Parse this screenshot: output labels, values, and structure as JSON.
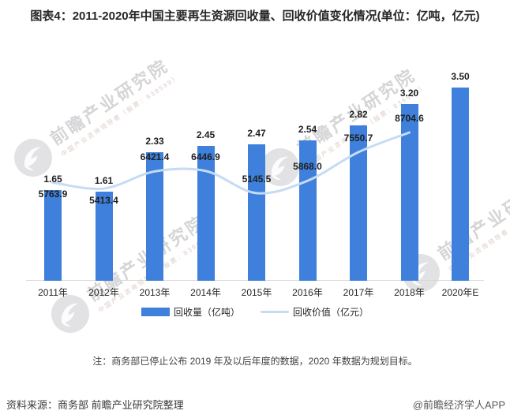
{
  "title": "图表4：2011-2020年中国主要再生资源回收量、回收价值变化情况(单位：亿吨，亿元)",
  "chart_data": {
    "type": "bar",
    "subtype": "bar-line-combo",
    "categories": [
      "2011年",
      "2012年",
      "2013年",
      "2014年",
      "2015年",
      "2016年",
      "2017年",
      "2018年",
      "2020年E"
    ],
    "series": [
      {
        "name": "回收量（亿吨）",
        "type": "bar",
        "values": [
          1.65,
          1.61,
          2.33,
          2.45,
          2.47,
          2.54,
          2.82,
          3.2,
          3.5
        ],
        "labels": [
          "1.65",
          "1.61",
          "2.33",
          "2.45",
          "2.47",
          "2.54",
          "2.82",
          "3.20",
          "3.50"
        ],
        "color": "#3E80DB"
      },
      {
        "name": "回收价值（亿元）",
        "type": "line",
        "values": [
          5763.9,
          5413.4,
          6421.4,
          6446.9,
          5145.5,
          5868.0,
          7550.7,
          8704.6,
          null
        ],
        "labels": [
          "5763.9",
          "5413.4",
          "6421.4",
          "6446.9",
          "5145.5",
          "5868.0",
          "7550.7",
          "8704.6",
          null
        ],
        "label_side": [
          "below",
          "below",
          "above",
          "above",
          "above",
          "above",
          "above",
          "above",
          null
        ],
        "color": "#C5DCF4"
      }
    ],
    "xlabel": "",
    "ylabel": "",
    "grid": false,
    "y_axis_visible": false,
    "legend_position": "bottom",
    "bar_axis_range": [
      0,
      4
    ],
    "line_axis_range": [
      0,
      12000
    ]
  },
  "legend": {
    "bar_label": "回收量（亿吨）",
    "line_label": "回收价值（亿元）"
  },
  "note": "注：商务部已停止公布 2019 年及以后年度的数据，2020 年数据为规划目标。",
  "footer": {
    "source": "资料来源：商务部 前瞻产业研究院整理",
    "copyright": "@前瞻经济学人APP"
  },
  "watermark": {
    "logo": "qianzhan-logo",
    "main": "前瞻产业研究院",
    "sub": "中国产业咨询领导者（股票：839599）"
  },
  "colors": {
    "bar": "#3E80DB",
    "line": "#C5DCF4",
    "axis": "#D9D9D9",
    "title_text": "#262626",
    "label_text": "#1F1F1F",
    "note_text": "#404040",
    "copyright_text": "#595959"
  }
}
